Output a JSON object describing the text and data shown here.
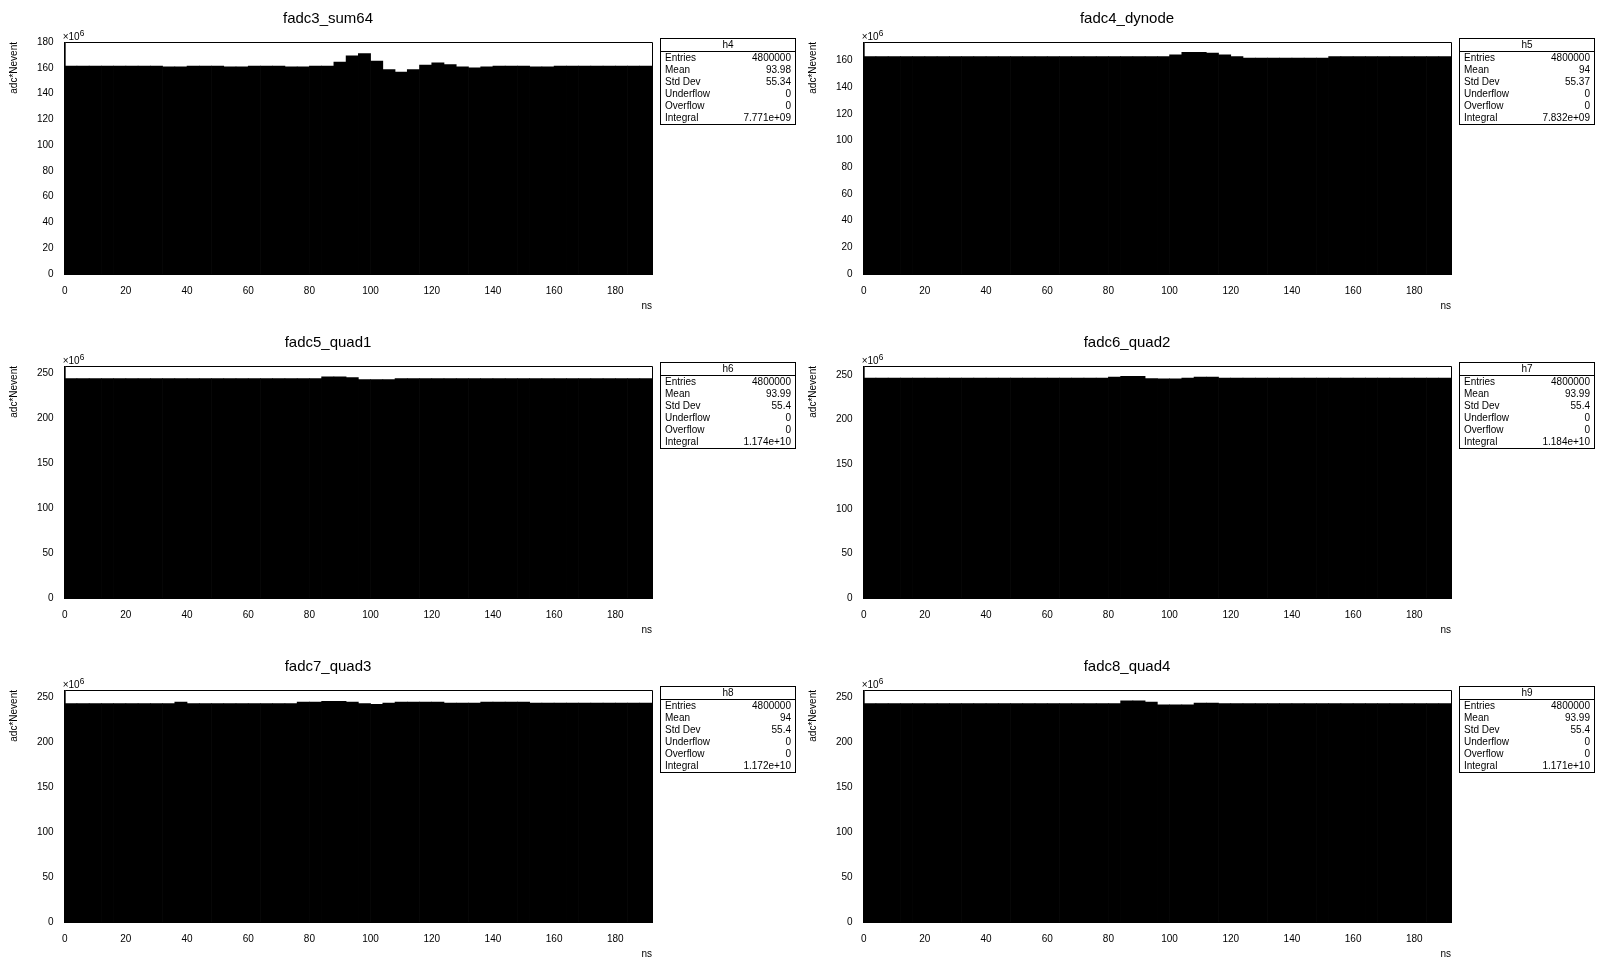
{
  "chart_data": [
    {
      "type": "histogram",
      "title": "fadc3_sum64",
      "xlabel": "ns",
      "ylabel": "adc*Nevent",
      "color": "#000000",
      "bins": [
        0,
        4,
        8,
        12,
        16,
        20,
        24,
        28,
        32,
        36,
        40,
        44,
        48,
        52,
        56,
        60,
        64,
        68,
        72,
        76,
        80,
        84,
        88,
        92,
        96,
        100,
        104,
        108,
        112,
        116,
        120,
        124,
        128,
        132,
        136,
        140,
        144,
        148,
        152,
        156,
        160,
        164,
        168,
        172,
        176,
        180,
        184,
        188,
        192
      ],
      "values": [
        161.4,
        161.4,
        161.4,
        161.4,
        161.4,
        161.4,
        161.4,
        161.4,
        160.7,
        160.7,
        161.4,
        161.4,
        161.4,
        160.7,
        160.7,
        161.4,
        161.4,
        161.4,
        160.7,
        160.7,
        161.4,
        161.4,
        164.5,
        169.3,
        171,
        165.2,
        158.6,
        156.6,
        158.6,
        162,
        163.8,
        162.4,
        160.7,
        160,
        160.7,
        161.4,
        161.4,
        161.4,
        160.7,
        160.7,
        161.4,
        161.4,
        161.4,
        161.4,
        161.4,
        161.4,
        161.4,
        161.4
      ],
      "xlim": [
        0,
        192
      ],
      "xticks": [
        0,
        20,
        40,
        60,
        80,
        100,
        120,
        140,
        160,
        180
      ],
      "ylim": [
        0,
        180
      ],
      "yticks": [
        0,
        20,
        40,
        60,
        80,
        100,
        120,
        140,
        160,
        180
      ],
      "grid": false,
      "legend": false,
      "annotations": [
        "×10$^{6}$",
        "h4",
        "Entries",
        "4800000",
        "Mean",
        "93.98",
        "Std Dev",
        "55.34",
        "Underflow",
        "0",
        "Overflow",
        "0",
        "Integral",
        "7.771e+09"
      ]
    },
    {
      "type": "histogram",
      "title": "fadc4_dynode",
      "xlabel": "ns",
      "ylabel": "adc*Nevent",
      "color": "#000000",
      "bins": [
        0,
        4,
        8,
        12,
        16,
        20,
        24,
        28,
        32,
        36,
        40,
        44,
        48,
        52,
        56,
        60,
        64,
        68,
        72,
        76,
        80,
        84,
        88,
        92,
        96,
        100,
        104,
        108,
        112,
        116,
        120,
        124,
        128,
        132,
        136,
        140,
        144,
        148,
        152,
        156,
        160,
        164,
        168,
        172,
        176,
        180,
        184,
        188,
        192
      ],
      "values": [
        163,
        163,
        163,
        163,
        163,
        163,
        163,
        163,
        163,
        163,
        163,
        163,
        163,
        163,
        163,
        163,
        163,
        163,
        163,
        163,
        163,
        163,
        163,
        163,
        163,
        164.3,
        166.2,
        166.2,
        165.6,
        164.3,
        163,
        162,
        162,
        162,
        162,
        162,
        162,
        162,
        163,
        163,
        163,
        163,
        163,
        163,
        163,
        163,
        163,
        163
      ],
      "xlim": [
        0,
        192
      ],
      "xticks": [
        0,
        20,
        40,
        60,
        80,
        100,
        120,
        140,
        160,
        180
      ],
      "ylim": [
        0,
        174
      ],
      "yticks": [
        0,
        20,
        40,
        60,
        80,
        100,
        120,
        140,
        160
      ],
      "grid": false,
      "legend": false,
      "annotations": [
        "×10$^{6}$",
        "h5",
        "Entries",
        "4800000",
        "Mean",
        "94",
        "Std Dev",
        "55.37",
        "Underflow",
        "0",
        "Overflow",
        "0",
        "Integral",
        "7.832e+09"
      ]
    },
    {
      "type": "histogram",
      "title": "fadc5_quad1",
      "xlabel": "ns",
      "ylabel": "adc*Nevent",
      "color": "#000000",
      "bins": [
        0,
        4,
        8,
        12,
        16,
        20,
        24,
        28,
        32,
        36,
        40,
        44,
        48,
        52,
        56,
        60,
        64,
        68,
        72,
        76,
        80,
        84,
        88,
        92,
        96,
        100,
        104,
        108,
        112,
        116,
        120,
        124,
        128,
        132,
        136,
        140,
        144,
        148,
        152,
        156,
        160,
        164,
        168,
        172,
        176,
        180,
        184,
        188,
        192
      ],
      "values": [
        244,
        244,
        244,
        244,
        244,
        244,
        244,
        244,
        244,
        244,
        244,
        244,
        244,
        244,
        244,
        244,
        244,
        244,
        244,
        244,
        244,
        246,
        246,
        245,
        243,
        243,
        243,
        244,
        244,
        244,
        244,
        244,
        244,
        244,
        244,
        244,
        244,
        244,
        244,
        244,
        244,
        244,
        244,
        244,
        244,
        244,
        244,
        244
      ],
      "xlim": [
        0,
        192
      ],
      "xticks": [
        0,
        20,
        40,
        60,
        80,
        100,
        120,
        140,
        160,
        180
      ],
      "ylim": [
        0,
        258
      ],
      "yticks": [
        0,
        50,
        100,
        150,
        200,
        250
      ],
      "grid": false,
      "legend": false,
      "annotations": [
        "×10$^{6}$",
        "h6",
        "Entries",
        "4800000",
        "Mean",
        "93.99",
        "Std Dev",
        "55.4",
        "Underflow",
        "0",
        "Overflow",
        "0",
        "Integral",
        "1.174e+10"
      ]
    },
    {
      "type": "histogram",
      "title": "fadc6_quad2",
      "xlabel": "ns",
      "ylabel": "adc*Nevent",
      "color": "#000000",
      "bins": [
        0,
        4,
        8,
        12,
        16,
        20,
        24,
        28,
        32,
        36,
        40,
        44,
        48,
        52,
        56,
        60,
        64,
        68,
        72,
        76,
        80,
        84,
        88,
        92,
        96,
        100,
        104,
        108,
        112,
        116,
        120,
        124,
        128,
        132,
        136,
        140,
        144,
        148,
        152,
        156,
        160,
        164,
        168,
        172,
        176,
        180,
        184,
        188,
        192
      ],
      "values": [
        246.5,
        246.5,
        246.5,
        246.5,
        246.5,
        246.5,
        246.5,
        246.5,
        246.5,
        246.5,
        246.5,
        246.5,
        246.5,
        246.5,
        246.5,
        246.5,
        246.5,
        246.5,
        246.5,
        246.5,
        247.5,
        248.5,
        248.5,
        246,
        245.5,
        245.5,
        246.5,
        247.5,
        247.5,
        246.5,
        246.5,
        246.5,
        246.5,
        246.5,
        246.5,
        246.5,
        246.5,
        246.5,
        246.5,
        246.5,
        246.5,
        246.5,
        246.5,
        246.5,
        246.5,
        246.5,
        246.5,
        246.5
      ],
      "xlim": [
        0,
        192
      ],
      "xticks": [
        0,
        20,
        40,
        60,
        80,
        100,
        120,
        140,
        160,
        180
      ],
      "ylim": [
        0,
        260
      ],
      "yticks": [
        0,
        50,
        100,
        150,
        200,
        250
      ],
      "grid": false,
      "legend": false,
      "annotations": [
        "×10$^{6}$",
        "h7",
        "Entries",
        "4800000",
        "Mean",
        "93.99",
        "Std Dev",
        "55.4",
        "Underflow",
        "0",
        "Overflow",
        "0",
        "Integral",
        "1.184e+10"
      ]
    },
    {
      "type": "histogram",
      "title": "fadc7_quad3",
      "xlabel": "ns",
      "ylabel": "adc*Nevent",
      "color": "#000000",
      "bins": [
        0,
        4,
        8,
        12,
        16,
        20,
        24,
        28,
        32,
        36,
        40,
        44,
        48,
        52,
        56,
        60,
        64,
        68,
        72,
        76,
        80,
        84,
        88,
        92,
        96,
        100,
        104,
        108,
        112,
        116,
        120,
        124,
        128,
        132,
        136,
        140,
        144,
        148,
        152,
        156,
        160,
        164,
        168,
        172,
        176,
        180,
        184,
        188,
        192
      ],
      "values": [
        243,
        243,
        243,
        243,
        243,
        243,
        243,
        243,
        243,
        244.5,
        243,
        243,
        243,
        243,
        243,
        243,
        243,
        243,
        243,
        244.5,
        244.5,
        245.5,
        245.5,
        244.5,
        243,
        242,
        243.5,
        244.5,
        244.5,
        244.5,
        244.5,
        243.5,
        243.5,
        243.5,
        244.5,
        244.5,
        244.5,
        244.5,
        243.5,
        243.5,
        243.5,
        243.5,
        243.5,
        243.5,
        243.5,
        243.5,
        243.5,
        243.5
      ],
      "xlim": [
        0,
        192
      ],
      "xticks": [
        0,
        20,
        40,
        60,
        80,
        100,
        120,
        140,
        160,
        180
      ],
      "ylim": [
        0,
        258
      ],
      "yticks": [
        0,
        50,
        100,
        150,
        200,
        250
      ],
      "grid": false,
      "legend": false,
      "annotations": [
        "×10$^{6}$",
        "h8",
        "Entries",
        "4800000",
        "Mean",
        "94",
        "Std Dev",
        "55.4",
        "Underflow",
        "0",
        "Overflow",
        "0",
        "Integral",
        "1.172e+10"
      ]
    },
    {
      "type": "histogram",
      "title": "fadc8_quad4",
      "xlabel": "ns",
      "ylabel": "adc*Nevent",
      "color": "#000000",
      "bins": [
        0,
        4,
        8,
        12,
        16,
        20,
        24,
        28,
        32,
        36,
        40,
        44,
        48,
        52,
        56,
        60,
        64,
        68,
        72,
        76,
        80,
        84,
        88,
        92,
        96,
        100,
        104,
        108,
        112,
        116,
        120,
        124,
        128,
        132,
        136,
        140,
        144,
        148,
        152,
        156,
        160,
        164,
        168,
        172,
        176,
        180,
        184,
        188,
        192
      ],
      "values": [
        243,
        243,
        243,
        243,
        243,
        243,
        243,
        243,
        243,
        243,
        243,
        243,
        243,
        243,
        243,
        243,
        243,
        243,
        243,
        243,
        243,
        246,
        246,
        244.5,
        241.5,
        241.5,
        241.5,
        243.5,
        243.5,
        243,
        243,
        243,
        243,
        243,
        243,
        243,
        243,
        243,
        243,
        243,
        243,
        243,
        243,
        243,
        243,
        243,
        243,
        243
      ],
      "xlim": [
        0,
        192
      ],
      "xticks": [
        0,
        20,
        40,
        60,
        80,
        100,
        120,
        140,
        160,
        180
      ],
      "ylim": [
        0,
        258
      ],
      "yticks": [
        0,
        50,
        100,
        150,
        200,
        250
      ],
      "grid": false,
      "legend": false,
      "annotations": [
        "×10$^{6}$",
        "h9",
        "Entries",
        "4800000",
        "Mean",
        "93.99",
        "Std Dev",
        "55.4",
        "Underflow",
        "0",
        "Overflow",
        "0",
        "Integral",
        "1.171e+10"
      ]
    }
  ]
}
